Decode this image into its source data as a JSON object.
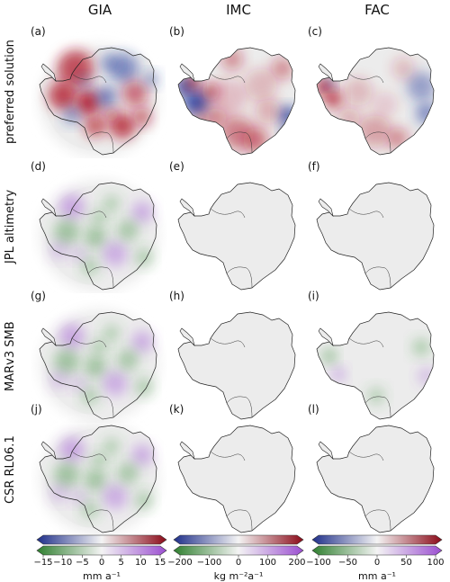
{
  "columns": [
    "GIA",
    "IMC",
    "FAC"
  ],
  "rows": [
    "preferred solution",
    "JPL altimetry",
    "MARv3 SMB",
    "CSR RL06.1"
  ],
  "panels": [
    {
      "letter": "(a)",
      "type": "gia-ref"
    },
    {
      "letter": "(b)",
      "type": "imc-ref"
    },
    {
      "letter": "(c)",
      "type": "fac-ref"
    },
    {
      "letter": "(d)",
      "type": "gia-diff"
    },
    {
      "letter": "(e)",
      "type": "flat"
    },
    {
      "letter": "(f)",
      "type": "flat"
    },
    {
      "letter": "(g)",
      "type": "gia-diff"
    },
    {
      "letter": "(h)",
      "type": "flat"
    },
    {
      "letter": "(i)",
      "type": "fac-diff"
    },
    {
      "letter": "(j)",
      "type": "gia-diff"
    },
    {
      "letter": "(k)",
      "type": "flat"
    },
    {
      "letter": "(l)",
      "type": "flat"
    }
  ],
  "colorbars": [
    {
      "ticks": [
        "−15",
        "−10",
        "−5",
        "0",
        "5",
        "10",
        "15"
      ],
      "unit": "mm a⁻¹"
    },
    {
      "ticks": [
        "−200",
        "−100",
        "0",
        "100",
        "200"
      ],
      "unit": "kg m⁻²a⁻¹"
    },
    {
      "ticks": [
        "−100",
        "−50",
        "0",
        "50",
        "100"
      ],
      "unit": "mm a⁻¹"
    }
  ],
  "colors": {
    "blue": "#2b3f9e",
    "red": "#b2182b",
    "green": "#3e8f3e",
    "purple": "#9b4fd1",
    "land": "#ececec"
  }
}
